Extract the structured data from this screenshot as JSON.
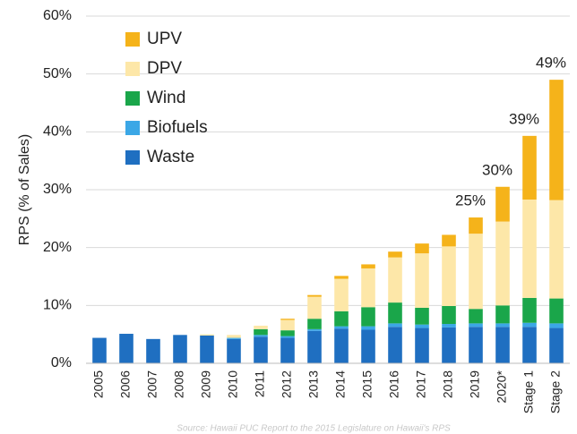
{
  "chart_data": {
    "type": "stacked_bar",
    "y_label": "RPS (% of Sales)",
    "source": "Source: Hawaii PUC Report to the 2015 Legislature on Hawaii's RPS",
    "categories": [
      "2005",
      "2006",
      "2007",
      "2008",
      "2009",
      "2010",
      "2011",
      "2012",
      "2013",
      "2014",
      "2015",
      "2016",
      "2017",
      "2018",
      "2019",
      "2020*",
      "Stage 1",
      "Stage 2"
    ],
    "series": [
      {
        "name": "Waste",
        "color": "#1f6fc1",
        "values": [
          4.4,
          5.1,
          4.2,
          4.9,
          4.8,
          4.2,
          4.6,
          4.4,
          5.6,
          6.0,
          5.8,
          6.3,
          6.1,
          6.2,
          6.3,
          6.3,
          6.3,
          6.1
        ]
      },
      {
        "name": "Biofuels",
        "color": "#3ba7e6",
        "values": [
          0,
          0,
          0,
          0,
          0,
          0.2,
          0.3,
          0.3,
          0.3,
          0.4,
          0.6,
          0.6,
          0.6,
          0.6,
          0.6,
          0.6,
          0.7,
          0.8
        ]
      },
      {
        "name": "Wind",
        "color": "#1aa64a",
        "values": [
          0,
          0,
          0,
          0,
          0,
          0,
          1.0,
          1.0,
          1.8,
          2.6,
          3.3,
          3.6,
          2.9,
          3.1,
          2.5,
          3.1,
          4.3,
          4.3
        ]
      },
      {
        "name": "DPV",
        "color": "#fde7a8",
        "values": [
          0,
          0,
          0,
          0,
          0.2,
          0.5,
          0.6,
          1.8,
          3.8,
          5.6,
          6.7,
          7.8,
          9.4,
          10.3,
          13.0,
          14.5,
          17.0,
          17.0
        ]
      },
      {
        "name": "UPV",
        "color": "#f5b31a",
        "values": [
          0,
          0,
          0,
          0,
          0,
          0,
          0,
          0.2,
          0.3,
          0.5,
          0.7,
          1.0,
          1.7,
          2.0,
          2.8,
          6.0,
          11.0,
          20.8
        ]
      }
    ],
    "total_labels": [
      null,
      null,
      null,
      null,
      null,
      null,
      null,
      null,
      null,
      null,
      null,
      null,
      null,
      null,
      "25%",
      "30%",
      "39%",
      "49%"
    ],
    "ylim": [
      0,
      60
    ],
    "yticks": [
      {
        "value": 0,
        "label": "0%"
      },
      {
        "value": 10,
        "label": "10%"
      },
      {
        "value": 20,
        "label": "20%"
      },
      {
        "value": 30,
        "label": "30%"
      },
      {
        "value": 40,
        "label": "40%"
      },
      {
        "value": 50,
        "label": "50%"
      },
      {
        "value": 60,
        "label": "60%"
      }
    ],
    "grid": true
  }
}
